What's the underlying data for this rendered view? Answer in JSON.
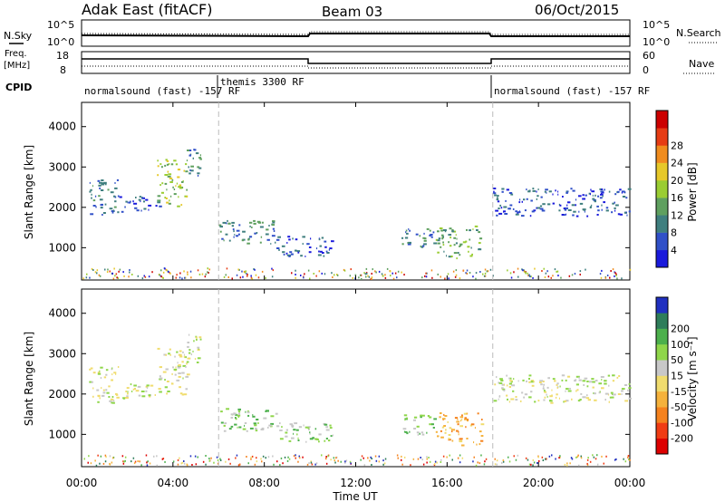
{
  "header": {
    "station": "Adak East (fitACF)",
    "beam": "Beam 03",
    "date": "06/Oct/2015"
  },
  "panels": {
    "nsky": {
      "label": "N.Sky",
      "ticks": [
        "10^5",
        "10^0"
      ]
    },
    "nsearch": {
      "label": "N.Search",
      "ticks": [
        "10^5",
        "10^0"
      ]
    },
    "freq": {
      "label_1": "Freq.",
      "label_2": "[MHz]",
      "ticks": [
        "18",
        "8"
      ]
    },
    "nave": {
      "label": "Nave",
      "ticks": [
        "60",
        "0"
      ]
    },
    "cpid": {
      "label": "CPID",
      "segments": [
        {
          "text": "normalsound (fast) -157 RF",
          "start_h": 0,
          "end_h": 6
        },
        {
          "text": "themis 3300 RF",
          "start_h": 6,
          "end_h": 18
        },
        {
          "text": "normalsound (fast) -157 RF",
          "start_h": 18,
          "end_h": 24
        }
      ]
    }
  },
  "axes": {
    "ylabel": "Slant Range [km]",
    "xlabel": "Time UT",
    "yticks": [
      "1000",
      "2000",
      "3000",
      "4000"
    ],
    "xticks": [
      "00:00",
      "04:00",
      "08:00",
      "12:00",
      "16:00",
      "20:00",
      "00:00"
    ]
  },
  "colorbars": {
    "power": {
      "label": "Power [dB]",
      "ticks": [
        "4",
        "8",
        "12",
        "16",
        "20",
        "24",
        "28"
      ],
      "colors": [
        "#1a1adc",
        "#3050c8",
        "#3f7f7f",
        "#5fa05f",
        "#9acd32",
        "#e6c829",
        "#f08c1e",
        "#e63c14",
        "#cc0000"
      ]
    },
    "velocity": {
      "label": "Velocity [m s⁻¹]",
      "ticks": [
        "-200",
        "-100",
        "-50",
        "-15",
        "15",
        "50",
        "100",
        "200"
      ],
      "colors": [
        "#dd0000",
        "#f03c14",
        "#f5821e",
        "#f5b23c",
        "#f0dc6e",
        "#c8c8c8",
        "#8fd64a",
        "#4cb04c",
        "#2e7d5a",
        "#2030c0"
      ]
    }
  },
  "chart_data": [
    {
      "type": "heatmap",
      "title": "Power [dB]",
      "xlabel": "Time UT",
      "ylabel": "Slant Range [km]",
      "xlim": [
        0,
        24
      ],
      "ylim": [
        200,
        4600
      ],
      "series": [
        {
          "start_h": 0.3,
          "end_h": 1.6,
          "range_low": 1800,
          "range_high": 2700,
          "level": 2
        },
        {
          "start_h": 1.6,
          "end_h": 3.4,
          "range_low": 1900,
          "range_high": 2300,
          "level": 1
        },
        {
          "start_h": 3.3,
          "end_h": 4.6,
          "range_low": 2000,
          "range_high": 3200,
          "level": 4
        },
        {
          "start_h": 4.6,
          "end_h": 5.2,
          "range_low": 2800,
          "range_high": 3500,
          "level": 2
        },
        {
          "start_h": 6.0,
          "end_h": 8.5,
          "range_low": 1100,
          "range_high": 1700,
          "level": 2
        },
        {
          "start_h": 8.5,
          "end_h": 11.0,
          "range_low": 800,
          "range_high": 1300,
          "level": 1
        },
        {
          "start_h": 14.0,
          "end_h": 15.5,
          "range_low": 1000,
          "range_high": 1500,
          "level": 2
        },
        {
          "start_h": 15.5,
          "end_h": 17.5,
          "range_low": 750,
          "range_high": 1550,
          "level": 3
        },
        {
          "start_h": 18.0,
          "end_h": 24.0,
          "range_low": 1800,
          "range_high": 2500,
          "level": 1
        }
      ]
    },
    {
      "type": "heatmap",
      "title": "Velocity [m s⁻¹]",
      "xlabel": "Time UT",
      "ylabel": "Slant Range [km]",
      "xlim": [
        0,
        24
      ],
      "ylim": [
        200,
        4600
      ],
      "series": [
        {
          "start_h": 0.3,
          "end_h": 1.6,
          "range_low": 1800,
          "range_high": 2700,
          "level": 5
        },
        {
          "start_h": 1.6,
          "end_h": 3.4,
          "range_low": 1900,
          "range_high": 2300,
          "level": 5
        },
        {
          "start_h": 3.3,
          "end_h": 4.6,
          "range_low": 2000,
          "range_high": 3200,
          "level": 5
        },
        {
          "start_h": 4.6,
          "end_h": 5.2,
          "range_low": 2800,
          "range_high": 3500,
          "level": 5
        },
        {
          "start_h": 6.0,
          "end_h": 8.5,
          "range_low": 1100,
          "range_high": 1700,
          "level": 6
        },
        {
          "start_h": 8.5,
          "end_h": 11.0,
          "range_low": 800,
          "range_high": 1300,
          "level": 6
        },
        {
          "start_h": 14.0,
          "end_h": 15.5,
          "range_low": 1000,
          "range_high": 1500,
          "level": 6
        },
        {
          "start_h": 15.5,
          "end_h": 17.5,
          "range_low": 750,
          "range_high": 1550,
          "level": 3
        },
        {
          "start_h": 18.0,
          "end_h": 24.0,
          "range_low": 1800,
          "range_high": 2500,
          "level": 5
        }
      ]
    }
  ]
}
